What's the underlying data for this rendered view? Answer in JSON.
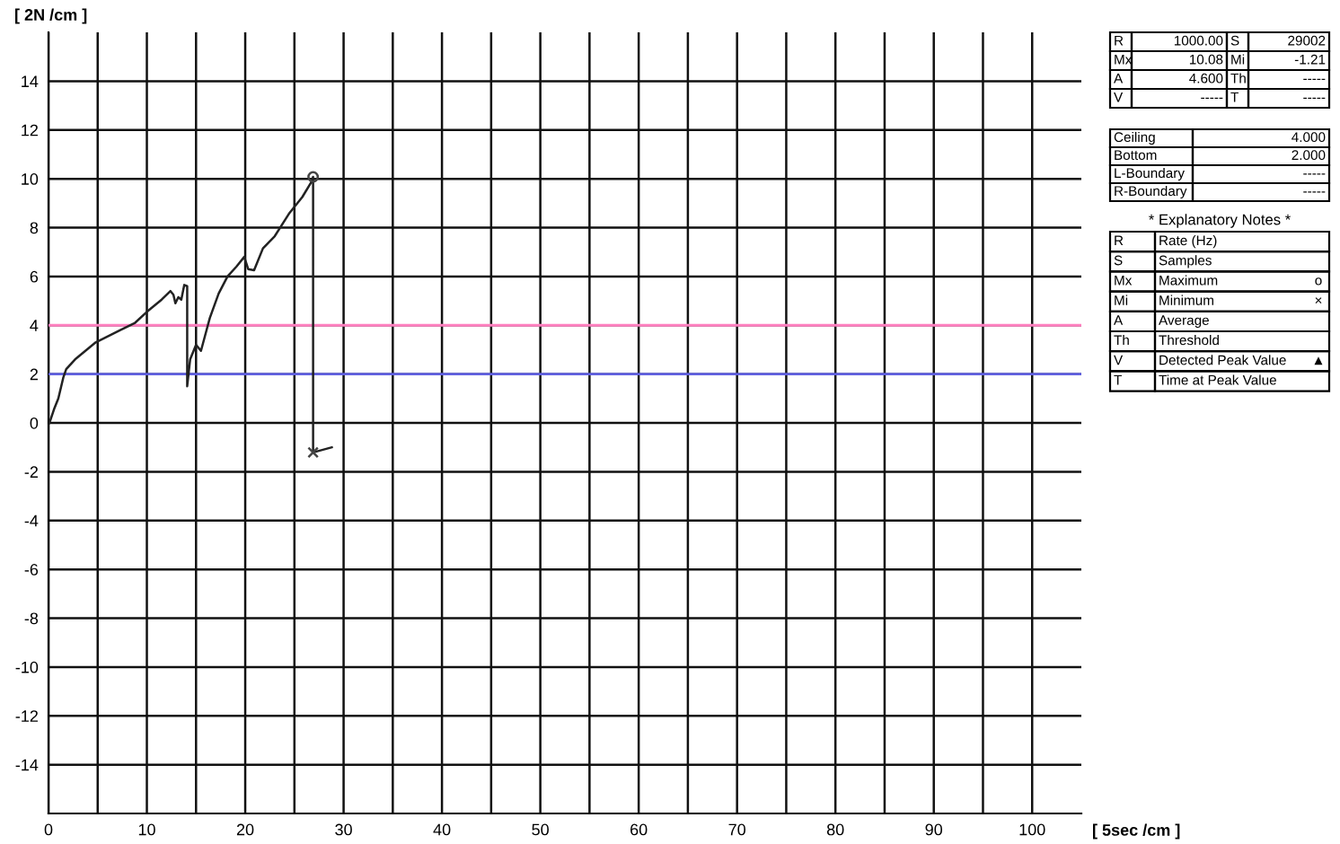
{
  "chart_data": {
    "type": "line",
    "xlabel": "[ 5sec /cm ]",
    "ylabel": "[ 2N /cm ]",
    "xlim": [
      0,
      105
    ],
    "ylim": [
      -16,
      16
    ],
    "xticks": [
      0,
      {
        "value": 5,
        "label": null
      },
      10,
      {
        "value": 15,
        "label": null
      },
      20,
      {
        "value": 25,
        "label": null
      },
      30,
      {
        "value": 35,
        "label": null
      },
      40,
      {
        "value": 45,
        "label": null
      },
      50,
      {
        "value": 55,
        "label": null
      },
      60,
      {
        "value": 65,
        "label": null
      },
      70,
      {
        "value": 75,
        "label": null
      },
      80,
      {
        "value": 85,
        "label": null
      },
      90,
      {
        "value": 95,
        "label": null
      },
      100
    ],
    "yticks": [
      -14,
      -12,
      -10,
      -8,
      -6,
      -4,
      -2,
      0,
      2,
      4,
      6,
      8,
      10,
      12,
      14
    ],
    "grid": true,
    "legend": false,
    "series": [
      {
        "color": "#222222",
        "marker": "none",
        "line_style": "solid",
        "x": [
          0.1,
          0.6,
          1.0,
          1.5,
          1.8,
          2.7,
          4.8,
          7.3,
          8.8,
          10.0,
          11.5,
          12.4,
          12.7,
          12.9,
          13.2,
          13.5,
          13.8,
          14.1,
          14.1,
          14.4,
          15.0,
          15.5,
          15.9,
          16.4,
          17.3,
          18.2,
          19.1,
          19.9,
          20.3,
          20.9,
          21.8,
          23.0,
          24.5,
          25.8,
          26.7,
          26.9,
          26.9,
          28.8
        ],
        "values": [
          0,
          0.6,
          1.0,
          1.85,
          2.2,
          2.6,
          3.3,
          3.8,
          4.1,
          4.55,
          5.05,
          5.4,
          5.25,
          4.9,
          5.15,
          5.05,
          5.65,
          5.6,
          1.5,
          2.6,
          3.2,
          2.95,
          3.55,
          4.3,
          5.3,
          6.0,
          6.4,
          6.8,
          6.3,
          6.25,
          7.15,
          7.65,
          8.6,
          9.25,
          9.85,
          10.08,
          -1.21,
          -1.0
        ]
      },
      {
        "type": "scatter",
        "color": "#444444",
        "marker": "circle",
        "x": [
          26.9
        ],
        "values": [
          10.08
        ]
      },
      {
        "type": "scatter",
        "color": "#444444",
        "marker": "cross",
        "x": [
          26.9
        ],
        "values": [
          -1.21
        ]
      }
    ],
    "ref_lines": [
      {
        "axis": "y",
        "value": 4,
        "color": "#ff80c0",
        "line_style": "solid"
      },
      {
        "axis": "y",
        "value": 2,
        "color": "#6060e0",
        "line_style": "solid"
      }
    ],
    "annotations": [
      "R",
      "1000.00",
      "S",
      "29002",
      "Mx",
      "10.08",
      "Mi",
      "-1.21",
      "A",
      "4.600",
      "Th",
      "-----",
      "V",
      "-----",
      "T",
      "-----",
      "Ceiling",
      "4.000",
      "Bottom",
      "2.000",
      "L-Boundary",
      "-----",
      "R-Boundary",
      "-----",
      "* Explanatory Notes *",
      "R",
      "Rate (Hz)",
      "S",
      "Samples",
      "Mx",
      "Maximum",
      "o",
      "Mi",
      "Minimum",
      "×",
      "A",
      "Average",
      "Th",
      "Threshold",
      "V",
      "Detected Peak Value",
      "▲",
      "T",
      "Time at Peak Value"
    ]
  }
}
